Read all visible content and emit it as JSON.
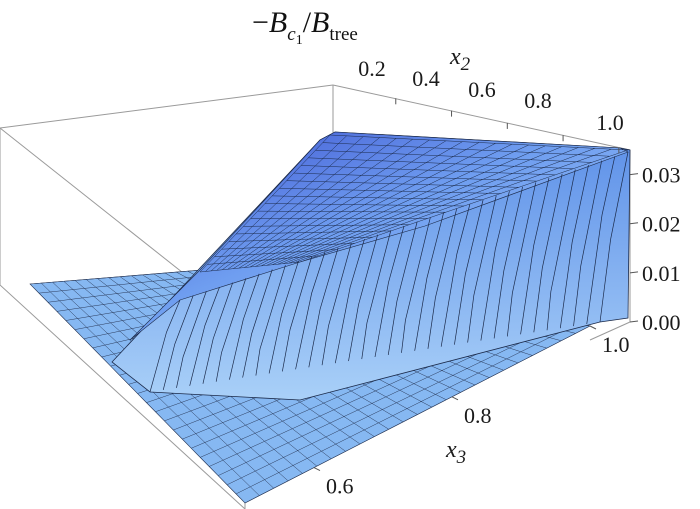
{
  "chart_data": {
    "type": "surface3d",
    "title": "−B_c1/B_tree",
    "title_parts": {
      "minus": "−",
      "b1": "B",
      "sub1": "c",
      "subsub1": "1",
      "slash": "/",
      "b2": "B",
      "sub2": "tree"
    },
    "axes": {
      "x2": {
        "label": "x",
        "label_sub": "2",
        "ticks": [
          "0.2",
          "0.4",
          "0.6",
          "0.8",
          "1.0"
        ],
        "range": [
          0.1,
          1.0
        ]
      },
      "x3": {
        "label": "x",
        "label_sub": "3",
        "ticks": [
          "0.6",
          "0.8",
          "1.0"
        ],
        "range": [
          0.5,
          1.0
        ]
      },
      "z": {
        "ticks": [
          "0.00",
          "0.01",
          "0.02",
          "0.03"
        ],
        "range": [
          0.0,
          0.035
        ]
      }
    },
    "description_values": {
      "max_value": 0.035,
      "region": "nonzero for x2 + x3 > 1, zero elsewhere"
    },
    "colors": {
      "surface": "#7fb2f0",
      "surface_dark": "#3a55c8",
      "mesh": "#1b2a4a",
      "box": "#9a9a9a"
    }
  }
}
